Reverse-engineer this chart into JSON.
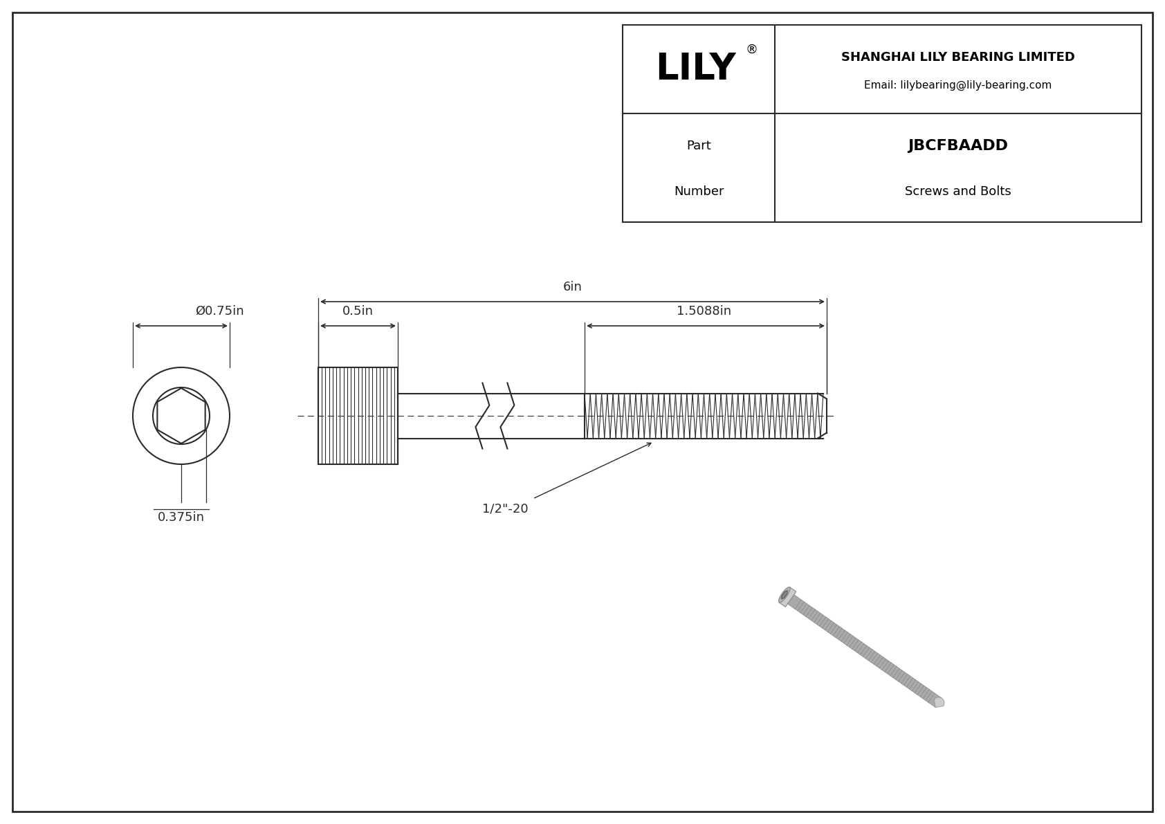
{
  "drawing_bg": "#ffffff",
  "line_color": "#2a2a2a",
  "title_company": "SHANGHAI LILY BEARING LIMITED",
  "title_email": "Email: lilybearing@lily-bearing.com",
  "part_number": "JBCFBAADD",
  "part_type": "Screws and Bolts",
  "logo_text": "LILY",
  "dim_head_diameter": "Ø0.75in",
  "dim_hex_diameter": "0.375in",
  "dim_head_length": "0.5in",
  "dim_total_length": "6in",
  "dim_thread_length": "1.5088in",
  "dim_thread_spec": "1/2\"-20"
}
